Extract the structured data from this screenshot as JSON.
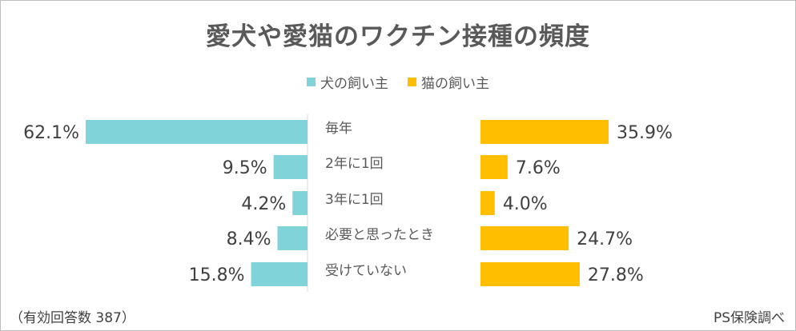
{
  "chart_data": {
    "type": "bar",
    "title": "愛犬や愛猫のワクチン接種の頻度",
    "categories": [
      "毎年",
      "2年に1回",
      "3年に1回",
      "必要と思ったとき",
      "受けていない"
    ],
    "series": [
      {
        "name": "犬の飼い主",
        "color": "#7fd3d9",
        "values": [
          62.1,
          9.5,
          4.2,
          8.4,
          15.8
        ],
        "labels": [
          "62.1%",
          "9.5%",
          "4.2%",
          "8.4%",
          "15.8%"
        ]
      },
      {
        "name": "猫の飼い主",
        "color": "#ffbf00",
        "values": [
          35.9,
          7.6,
          4.0,
          24.7,
          27.8
        ],
        "labels": [
          "35.9%",
          "7.6%",
          "4.0%",
          "24.7%",
          "27.8%"
        ]
      }
    ],
    "legend_position": "top-center"
  },
  "footer": {
    "note": "（有効回答数 387）",
    "source": "PS保険調べ"
  }
}
